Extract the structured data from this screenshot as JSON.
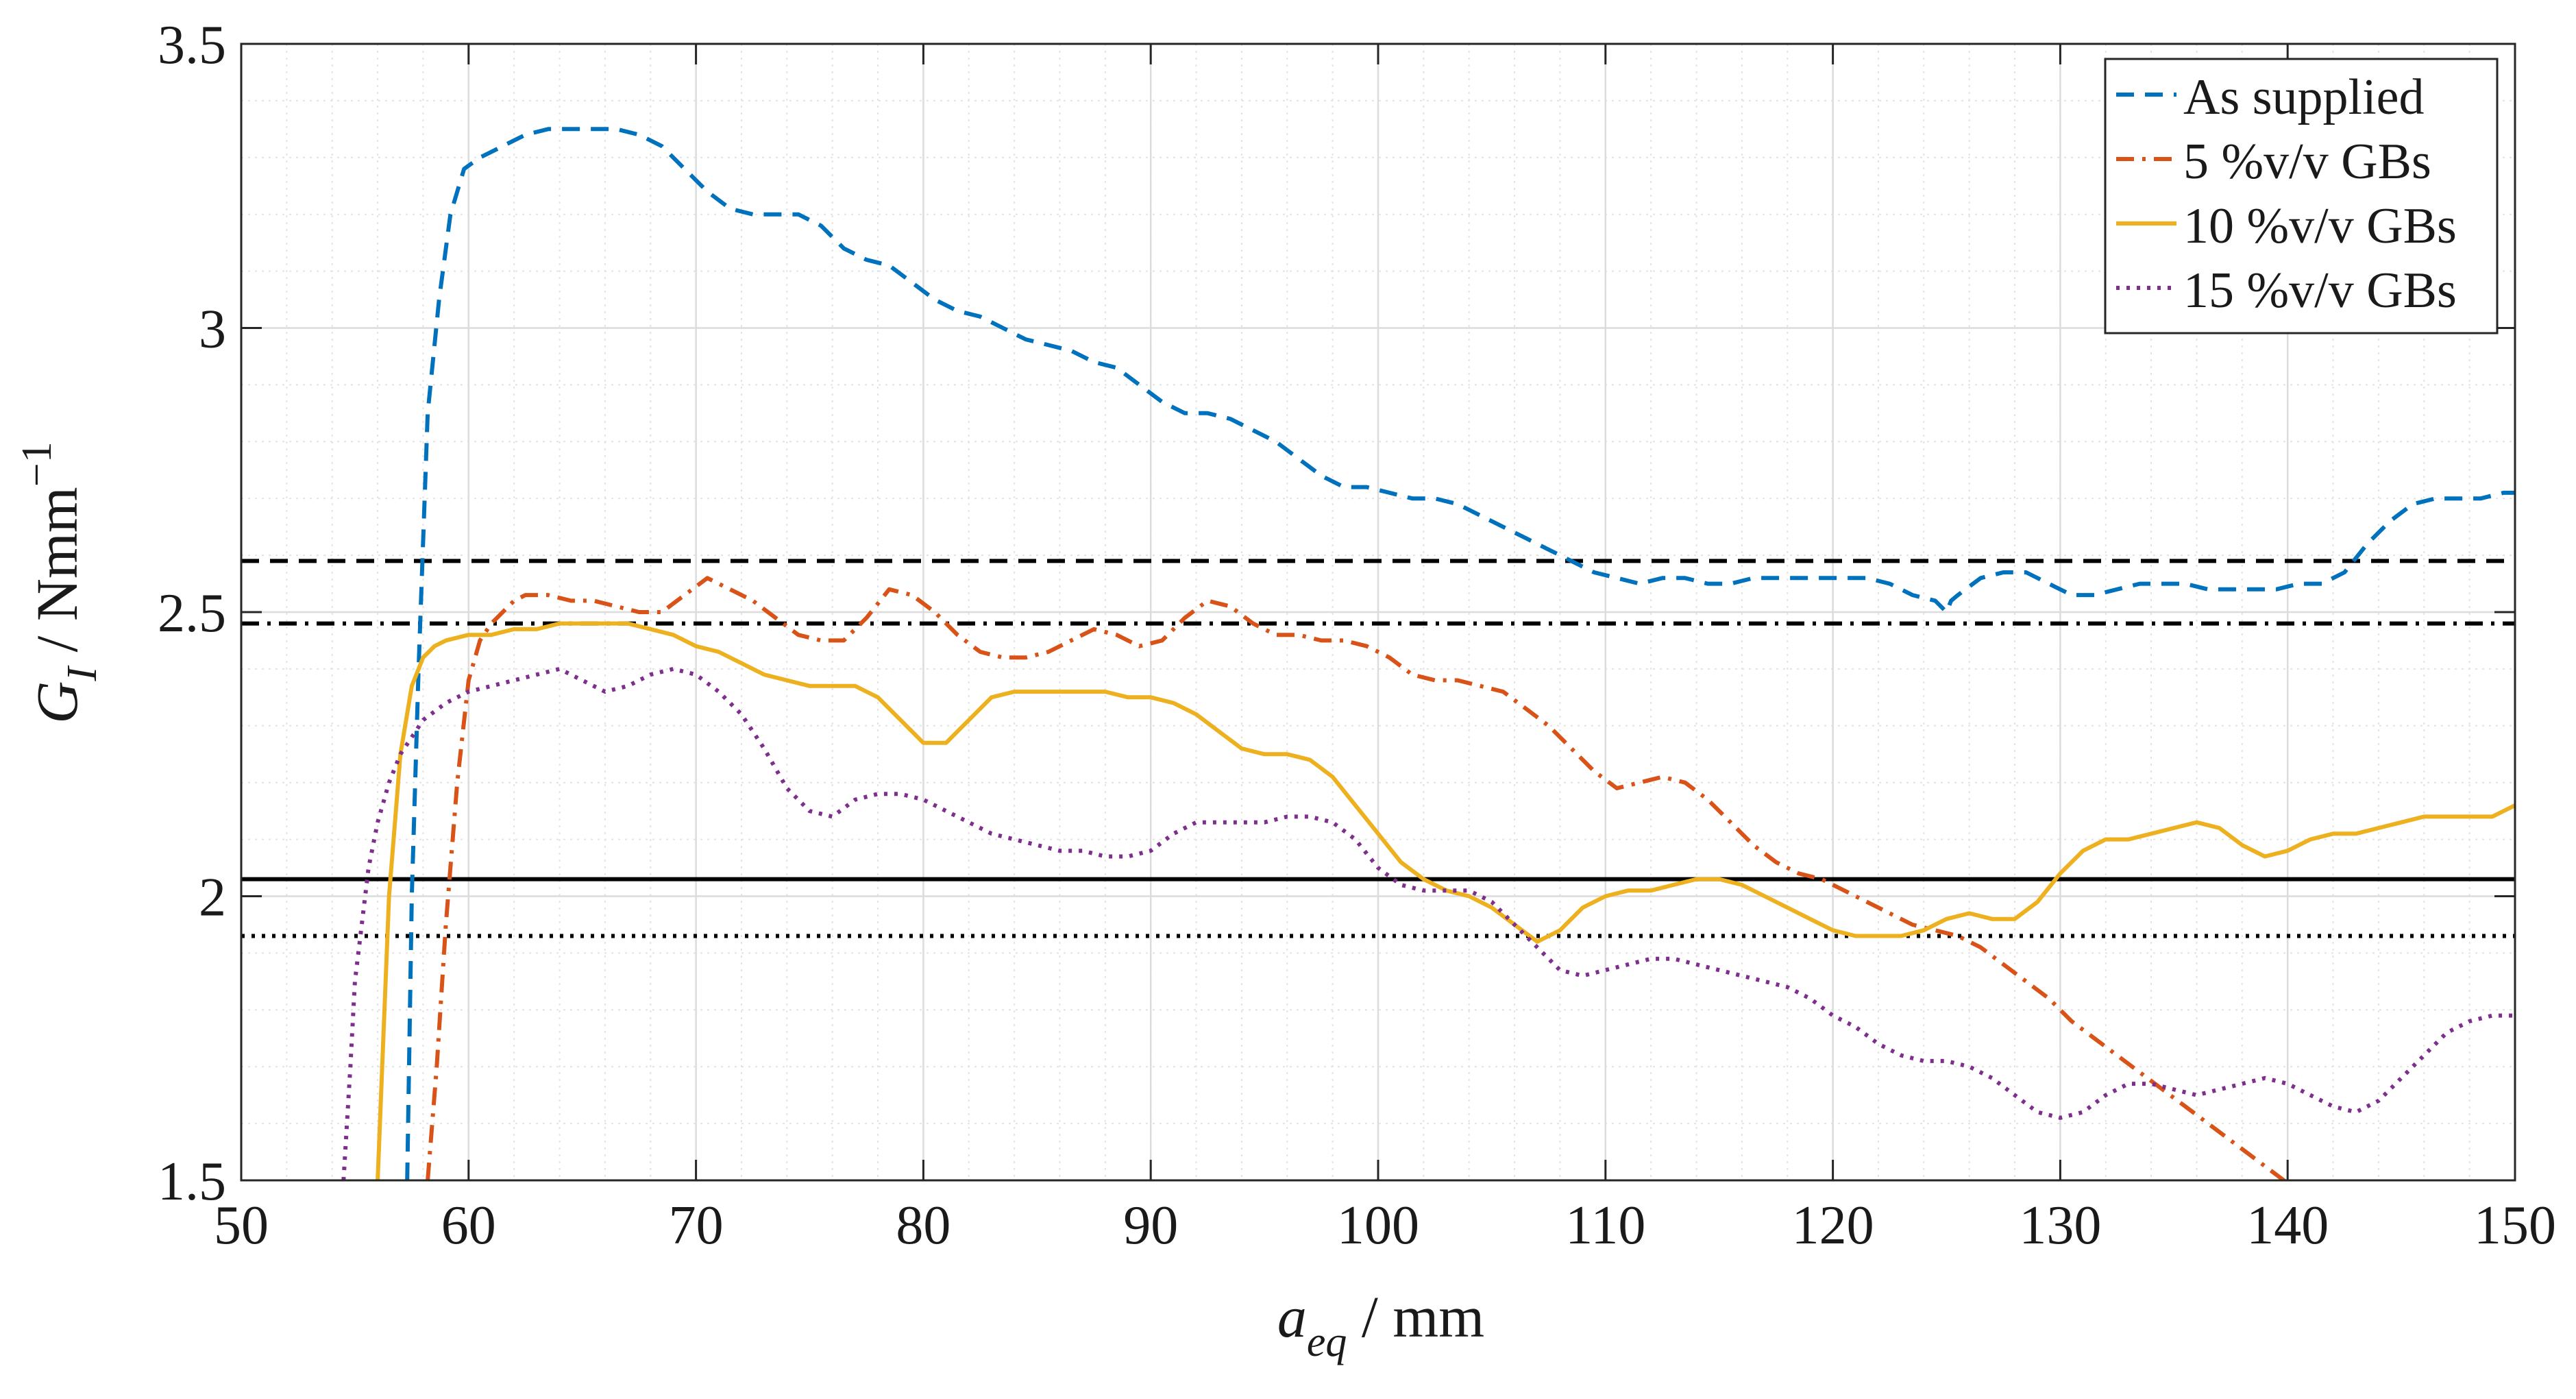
{
  "chart_data": {
    "type": "line",
    "title": "",
    "xlabel": {
      "main": "a",
      "sub": "eq",
      "unit": " / mm"
    },
    "ylabel": {
      "main": "G",
      "sub": "I",
      "unit": " / Nmm",
      "sup": "−1"
    },
    "xlim": [
      50,
      150
    ],
    "ylim": [
      1.5,
      3.5
    ],
    "xticks": [
      50,
      60,
      70,
      80,
      90,
      100,
      110,
      120,
      130,
      140,
      150
    ],
    "yticks": [
      1.5,
      2,
      2.5,
      3,
      3.5
    ],
    "xtick_labels": [
      "50",
      "60",
      "70",
      "80",
      "90",
      "100",
      "110",
      "120",
      "130",
      "140",
      "150"
    ],
    "ytick_labels": [
      "1.5",
      "2",
      "2.5",
      "3",
      "3.5"
    ],
    "grid": true,
    "minor_grid": true,
    "legend_position": "top-right",
    "series": [
      {
        "name": "As supplied",
        "color": "#0072BD",
        "dash": "dashed",
        "x": [
          57.3,
          57.5,
          57.8,
          58.2,
          58.7,
          59.2,
          59.8,
          60.5,
          61.5,
          62.5,
          63.5,
          64.5,
          65.5,
          66.5,
          67.5,
          68.5,
          69.5,
          70.5,
          71.5,
          72.5,
          73.5,
          74.5,
          75.5,
          76.5,
          77.5,
          78.5,
          79.5,
          80.5,
          81.5,
          82.5,
          83.5,
          84.5,
          85.5,
          86.5,
          87.5,
          88.5,
          89.5,
          90.5,
          91.5,
          92.5,
          93.5,
          94.5,
          95.5,
          96.5,
          97.5,
          98.5,
          99.5,
          100.5,
          101.5,
          102.5,
          103.5,
          104.5,
          105.5,
          106.5,
          107.5,
          108.5,
          109.5,
          110.5,
          111.5,
          112.5,
          113.5,
          114.5,
          115.5,
          116.5,
          117.5,
          118.5,
          119.5,
          120.5,
          121.5,
          122.5,
          123.5,
          124.5,
          125.0,
          125.2,
          125.5,
          126.5,
          127.5,
          128.5,
          129.5,
          130.5,
          131.5,
          132.5,
          133.5,
          134.5,
          135.5,
          136.5,
          137.5,
          138.5,
          139.5,
          140.5,
          141.5,
          142.5,
          143.5,
          144.5,
          145.5,
          146.5,
          147.5,
          148.5,
          149.5,
          150.0
        ],
        "y": [
          1.5,
          2.0,
          2.4,
          2.85,
          3.05,
          3.2,
          3.28,
          3.3,
          3.32,
          3.34,
          3.35,
          3.35,
          3.35,
          3.35,
          3.34,
          3.32,
          3.28,
          3.24,
          3.21,
          3.2,
          3.2,
          3.2,
          3.18,
          3.14,
          3.12,
          3.11,
          3.08,
          3.05,
          3.03,
          3.02,
          3.0,
          2.98,
          2.97,
          2.96,
          2.94,
          2.93,
          2.9,
          2.87,
          2.85,
          2.85,
          2.84,
          2.82,
          2.8,
          2.77,
          2.74,
          2.72,
          2.72,
          2.71,
          2.7,
          2.7,
          2.69,
          2.67,
          2.65,
          2.63,
          2.61,
          2.59,
          2.57,
          2.56,
          2.55,
          2.56,
          2.56,
          2.55,
          2.55,
          2.56,
          2.56,
          2.56,
          2.56,
          2.56,
          2.56,
          2.55,
          2.53,
          2.52,
          2.5,
          2.52,
          2.53,
          2.56,
          2.57,
          2.57,
          2.55,
          2.53,
          2.53,
          2.54,
          2.55,
          2.55,
          2.55,
          2.54,
          2.54,
          2.54,
          2.54,
          2.55,
          2.55,
          2.57,
          2.62,
          2.66,
          2.69,
          2.7,
          2.7,
          2.7,
          2.71,
          2.71
        ]
      },
      {
        "name": "5 %v/v GBs",
        "color": "#D95319",
        "dash": "dashdot",
        "x": [
          58.2,
          58.6,
          59.0,
          59.5,
          60.0,
          60.5,
          61.0,
          61.5,
          62.0,
          62.5,
          63.5,
          64.5,
          65.5,
          66.5,
          67.5,
          68.5,
          69.5,
          70.5,
          71.5,
          72.5,
          73.5,
          74.5,
          75.5,
          76.5,
          77.5,
          78.5,
          79.5,
          80.5,
          81.5,
          82.5,
          83.5,
          84.5,
          85.5,
          86.5,
          87.5,
          88.5,
          89.5,
          90.5,
          91.5,
          92.5,
          93.5,
          94.5,
          95.5,
          96.5,
          97.5,
          98.5,
          99.5,
          100.5,
          101.5,
          102.5,
          103.5,
          104.5,
          105.5,
          106.5,
          107.5,
          108.5,
          109.5,
          110.5,
          111.5,
          112.5,
          113.5,
          114.5,
          115.5,
          116.5,
          117.5,
          118.5,
          119.5,
          120.5,
          121.5,
          122.5,
          123.5,
          124.5,
          125.5,
          126.5,
          127.5,
          128.5,
          129.5,
          130.5,
          131.5,
          132.5,
          133.5,
          134.5,
          135.5,
          136.5,
          137.5,
          138.5,
          139.5,
          140.5
        ],
        "y": [
          1.5,
          1.7,
          1.95,
          2.2,
          2.38,
          2.45,
          2.48,
          2.5,
          2.52,
          2.53,
          2.53,
          2.52,
          2.52,
          2.51,
          2.5,
          2.5,
          2.53,
          2.56,
          2.54,
          2.52,
          2.49,
          2.46,
          2.45,
          2.45,
          2.49,
          2.54,
          2.53,
          2.5,
          2.46,
          2.43,
          2.42,
          2.42,
          2.43,
          2.45,
          2.47,
          2.46,
          2.44,
          2.45,
          2.49,
          2.52,
          2.51,
          2.48,
          2.46,
          2.46,
          2.45,
          2.45,
          2.44,
          2.42,
          2.39,
          2.38,
          2.38,
          2.37,
          2.36,
          2.33,
          2.3,
          2.26,
          2.22,
          2.19,
          2.2,
          2.21,
          2.2,
          2.17,
          2.13,
          2.09,
          2.06,
          2.04,
          2.03,
          2.01,
          1.99,
          1.97,
          1.95,
          1.94,
          1.93,
          1.91,
          1.88,
          1.85,
          1.82,
          1.78,
          1.75,
          1.72,
          1.69,
          1.66,
          1.63,
          1.6,
          1.57,
          1.54,
          1.51,
          1.48
        ]
      },
      {
        "name": "10 %v/v GBs",
        "color": "#EDB120",
        "dash": "solid",
        "x": [
          56.0,
          56.2,
          56.5,
          57.0,
          57.5,
          58.0,
          58.5,
          59.0,
          60.0,
          61.0,
          62.0,
          63.0,
          64.0,
          65.0,
          66.0,
          67.0,
          68.0,
          69.0,
          70.0,
          71.0,
          72.0,
          73.0,
          74.0,
          75.0,
          76.0,
          77.0,
          78.0,
          79.0,
          80.0,
          81.0,
          82.0,
          83.0,
          84.0,
          85.0,
          86.0,
          87.0,
          88.0,
          89.0,
          90.0,
          91.0,
          92.0,
          93.0,
          94.0,
          95.0,
          96.0,
          97.0,
          98.0,
          99.0,
          100.0,
          101.0,
          102.0,
          103.0,
          104.0,
          105.0,
          106.0,
          107.0,
          108.0,
          109.0,
          110.0,
          111.0,
          112.0,
          113.0,
          114.0,
          115.0,
          116.0,
          117.0,
          118.0,
          119.0,
          120.0,
          121.0,
          122.0,
          123.0,
          124.0,
          125.0,
          126.0,
          127.0,
          128.0,
          129.0,
          130.0,
          131.0,
          132.0,
          133.0,
          134.0,
          135.0,
          136.0,
          137.0,
          138.0,
          139.0,
          140.0,
          141.0,
          142.0,
          143.0,
          144.0,
          145.0,
          146.0,
          147.0,
          148.0,
          149.0,
          150.0
        ],
        "y": [
          1.5,
          1.7,
          2.0,
          2.25,
          2.37,
          2.42,
          2.44,
          2.45,
          2.46,
          2.46,
          2.47,
          2.47,
          2.48,
          2.48,
          2.48,
          2.48,
          2.47,
          2.46,
          2.44,
          2.43,
          2.41,
          2.39,
          2.38,
          2.37,
          2.37,
          2.37,
          2.35,
          2.31,
          2.27,
          2.27,
          2.31,
          2.35,
          2.36,
          2.36,
          2.36,
          2.36,
          2.36,
          2.35,
          2.35,
          2.34,
          2.32,
          2.29,
          2.26,
          2.25,
          2.25,
          2.24,
          2.21,
          2.16,
          2.11,
          2.06,
          2.03,
          2.01,
          2.0,
          1.98,
          1.95,
          1.92,
          1.94,
          1.98,
          2.0,
          2.01,
          2.01,
          2.02,
          2.03,
          2.03,
          2.02,
          2.0,
          1.98,
          1.96,
          1.94,
          1.93,
          1.93,
          1.93,
          1.94,
          1.96,
          1.97,
          1.96,
          1.96,
          1.99,
          2.04,
          2.08,
          2.1,
          2.1,
          2.11,
          2.12,
          2.13,
          2.12,
          2.09,
          2.07,
          2.08,
          2.1,
          2.11,
          2.11,
          2.12,
          2.13,
          2.14,
          2.14,
          2.14,
          2.14,
          2.16
        ]
      },
      {
        "name": "15 %v/v GBs",
        "color": "#7E2F8E",
        "dash": "dotted",
        "x": [
          54.5,
          54.8,
          55.0,
          55.3,
          55.6,
          56.0,
          56.5,
          57.0,
          57.5,
          58.0,
          59.0,
          60.0,
          61.0,
          62.0,
          63.0,
          64.0,
          65.0,
          66.0,
          67.0,
          68.0,
          69.0,
          70.0,
          71.0,
          72.0,
          73.0,
          74.0,
          75.0,
          76.0,
          77.0,
          78.0,
          79.0,
          80.0,
          81.0,
          82.0,
          83.0,
          84.0,
          85.0,
          86.0,
          87.0,
          88.0,
          89.0,
          90.0,
          91.0,
          92.0,
          93.0,
          94.0,
          95.0,
          96.0,
          97.0,
          98.0,
          99.0,
          100.0,
          101.0,
          102.0,
          103.0,
          104.0,
          105.0,
          106.0,
          107.0,
          108.0,
          109.0,
          110.0,
          111.0,
          112.0,
          113.0,
          114.0,
          115.0,
          116.0,
          117.0,
          118.0,
          119.0,
          120.0,
          121.0,
          122.0,
          123.0,
          124.0,
          125.0,
          126.0,
          127.0,
          128.0,
          129.0,
          130.0,
          131.0,
          132.0,
          133.0,
          134.0,
          135.0,
          136.0,
          137.0,
          138.0,
          139.0,
          140.0,
          141.0,
          142.0,
          143.0,
          144.0,
          145.0,
          146.0,
          147.0,
          148.0,
          149.0,
          150.0
        ],
        "y": [
          1.5,
          1.7,
          1.85,
          1.95,
          2.05,
          2.13,
          2.2,
          2.25,
          2.28,
          2.31,
          2.34,
          2.36,
          2.37,
          2.38,
          2.39,
          2.4,
          2.38,
          2.36,
          2.37,
          2.39,
          2.4,
          2.39,
          2.36,
          2.32,
          2.26,
          2.19,
          2.15,
          2.14,
          2.17,
          2.18,
          2.18,
          2.17,
          2.15,
          2.13,
          2.11,
          2.1,
          2.09,
          2.08,
          2.08,
          2.07,
          2.07,
          2.08,
          2.11,
          2.13,
          2.13,
          2.13,
          2.13,
          2.14,
          2.14,
          2.13,
          2.1,
          2.05,
          2.02,
          2.01,
          2.01,
          2.01,
          1.99,
          1.95,
          1.91,
          1.87,
          1.86,
          1.87,
          1.88,
          1.89,
          1.89,
          1.88,
          1.87,
          1.86,
          1.85,
          1.84,
          1.82,
          1.79,
          1.77,
          1.74,
          1.72,
          1.71,
          1.71,
          1.7,
          1.68,
          1.65,
          1.62,
          1.61,
          1.62,
          1.65,
          1.67,
          1.67,
          1.66,
          1.65,
          1.66,
          1.67,
          1.68,
          1.67,
          1.65,
          1.63,
          1.62,
          1.64,
          1.68,
          1.72,
          1.76,
          1.78,
          1.79,
          1.79
        ]
      }
    ],
    "reference_lines": [
      {
        "y": 2.59,
        "style": "dashed"
      },
      {
        "y": 2.48,
        "style": "dashdot"
      },
      {
        "y": 2.03,
        "style": "solid"
      },
      {
        "y": 1.93,
        "style": "dotted"
      }
    ]
  }
}
